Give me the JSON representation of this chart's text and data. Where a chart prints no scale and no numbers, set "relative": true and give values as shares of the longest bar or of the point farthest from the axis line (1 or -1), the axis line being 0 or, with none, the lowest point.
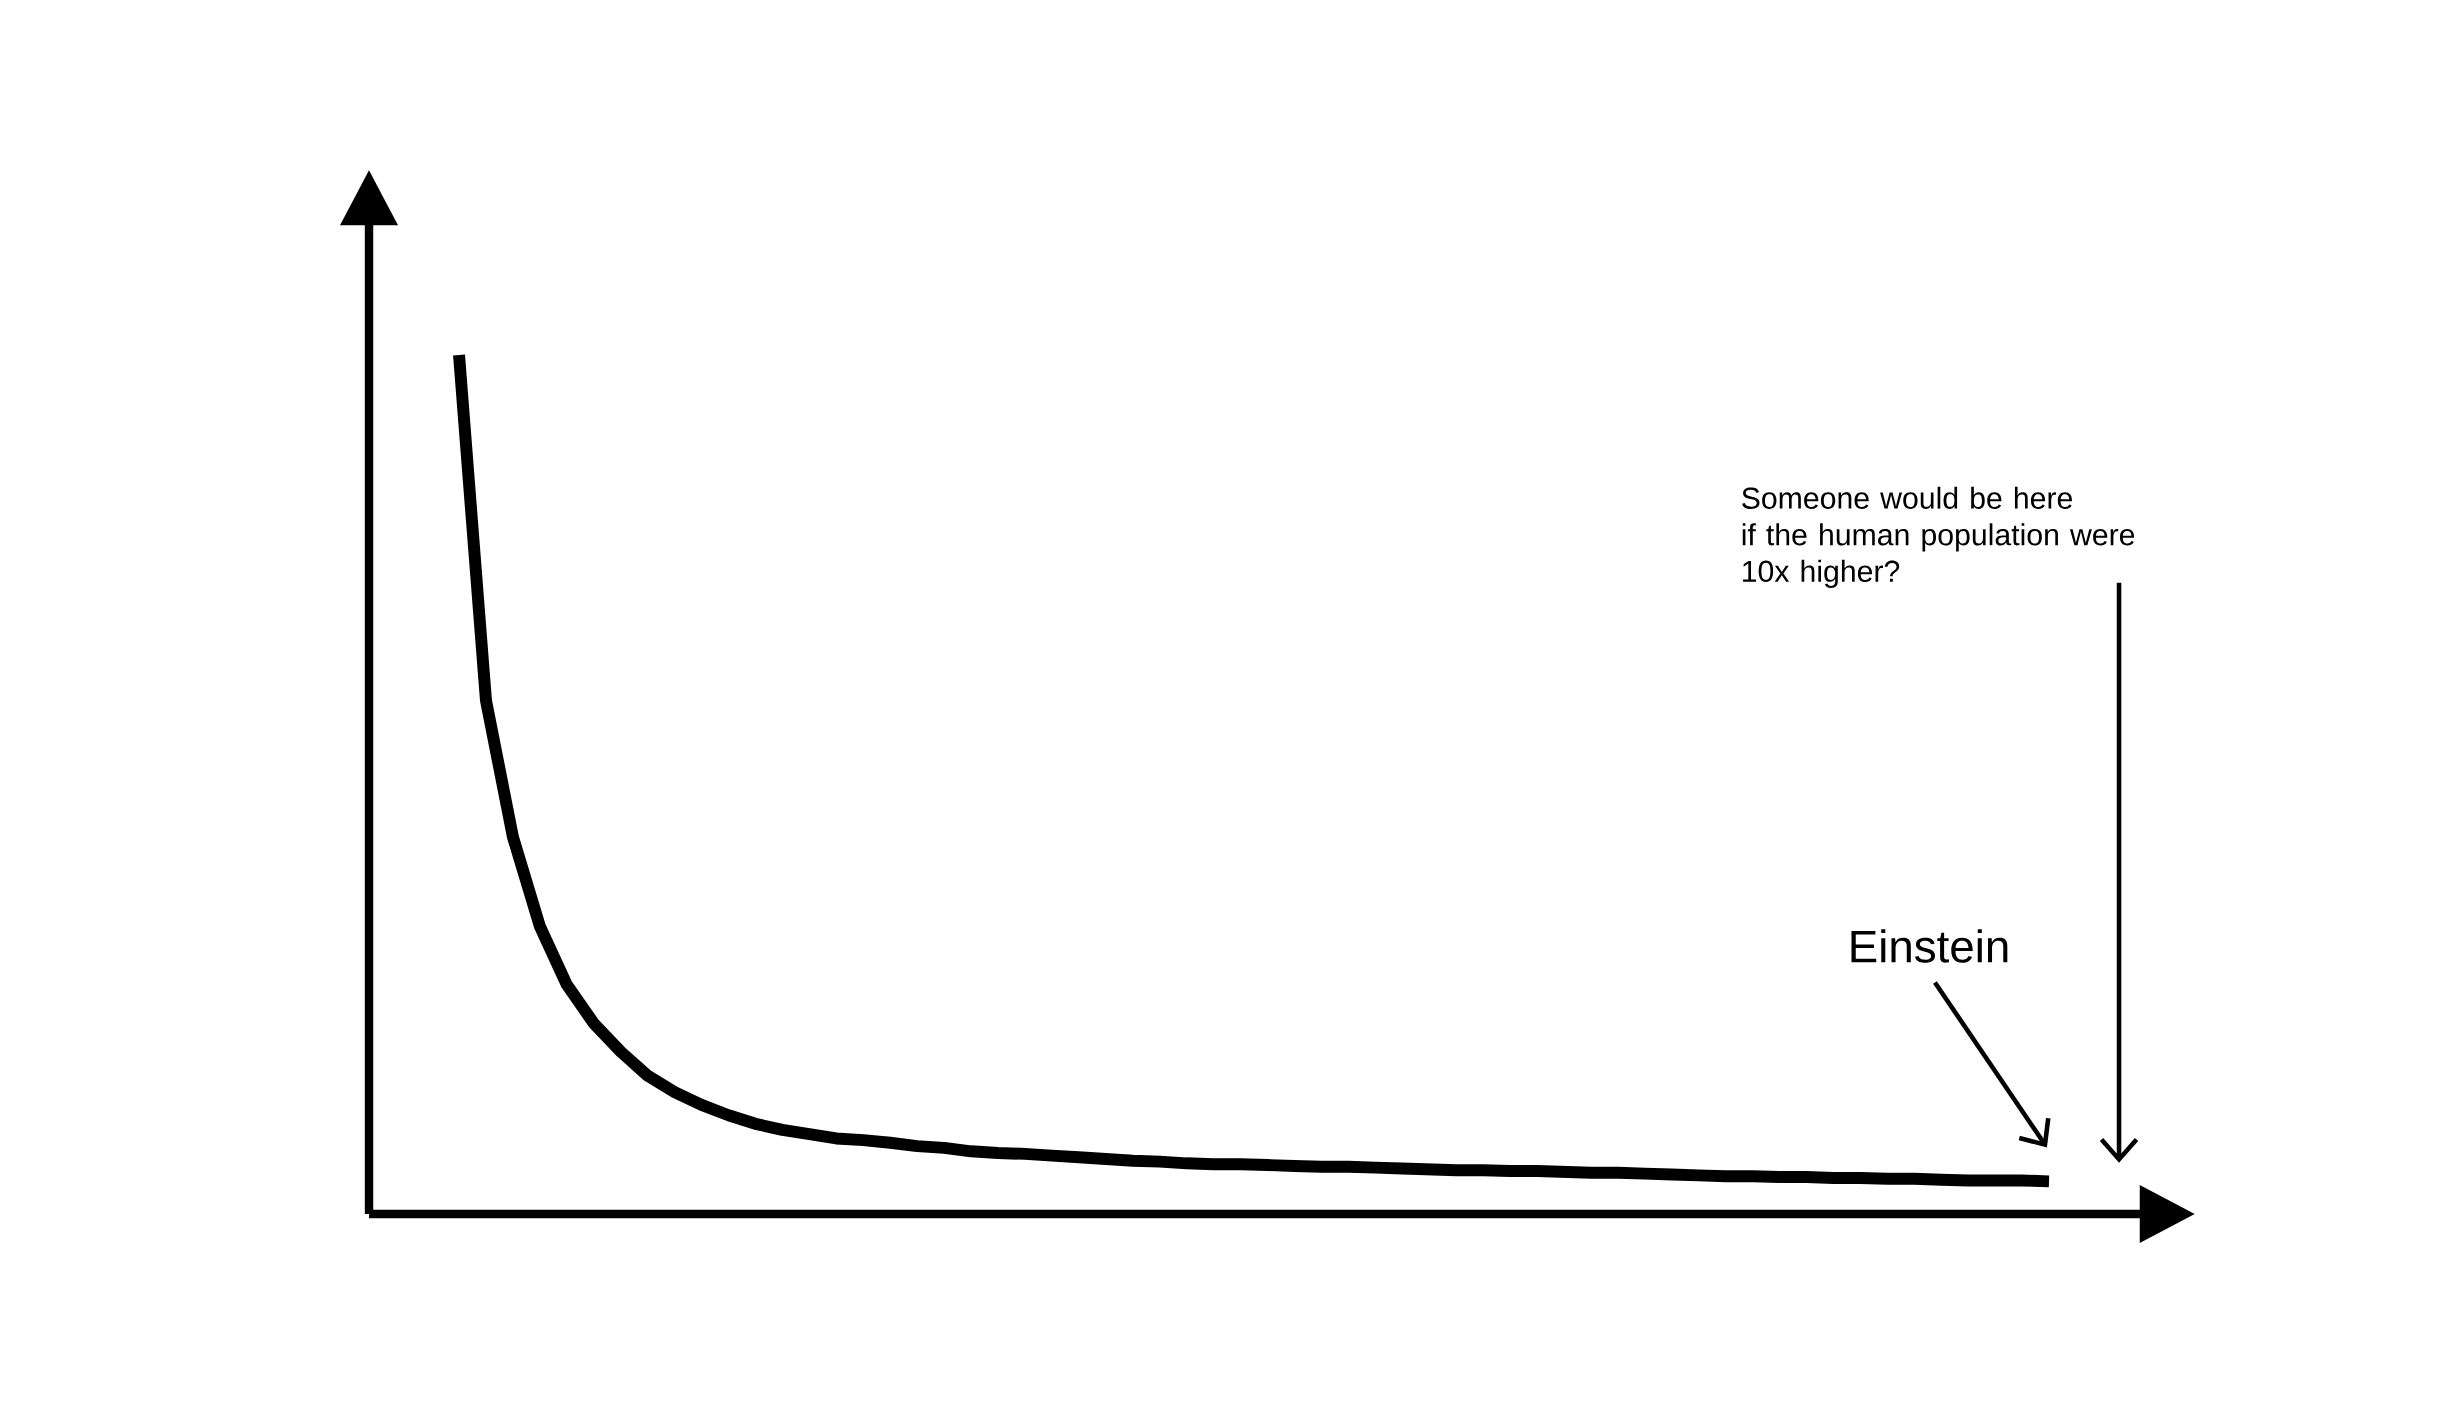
{
  "chart_data": {
    "type": "line",
    "relative": true,
    "color": "#000000",
    "categories": [
      null,
      null,
      null,
      null,
      null,
      null,
      null,
      null,
      null,
      null,
      null,
      null,
      null,
      null,
      null,
      null,
      null,
      null,
      null,
      null,
      null,
      null,
      null,
      null,
      null,
      null,
      null,
      null,
      null,
      null,
      null,
      null,
      null,
      null,
      null,
      null,
      null,
      null,
      null,
      null,
      null,
      null,
      null,
      null,
      null,
      null,
      null,
      null,
      null,
      null,
      null,
      null,
      null,
      null,
      null,
      null,
      null,
      null,
      null,
      null
    ],
    "values": [
      1.0,
      0.598,
      0.439,
      0.335,
      0.267,
      0.222,
      0.189,
      0.161,
      0.142,
      0.127,
      0.115,
      0.105,
      0.098,
      0.093,
      0.088,
      0.086,
      0.083,
      0.079,
      0.077,
      0.073,
      0.071,
      0.07,
      0.068,
      0.066,
      0.064,
      0.062,
      0.061,
      0.059,
      0.058,
      0.058,
      0.057,
      0.056,
      0.055,
      0.055,
      0.054,
      0.053,
      0.052,
      0.051,
      0.051,
      0.05,
      0.05,
      0.049,
      0.048,
      0.048,
      0.047,
      0.046,
      0.045,
      0.044,
      0.044,
      0.043,
      0.043,
      0.042,
      0.042,
      0.041,
      0.041,
      0.04,
      0.039,
      0.039,
      0.039,
      0.038
    ],
    "annotations": [
      "Einstein",
      "Someone would be here\nif the human population were\n10x higher?"
    ]
  }
}
